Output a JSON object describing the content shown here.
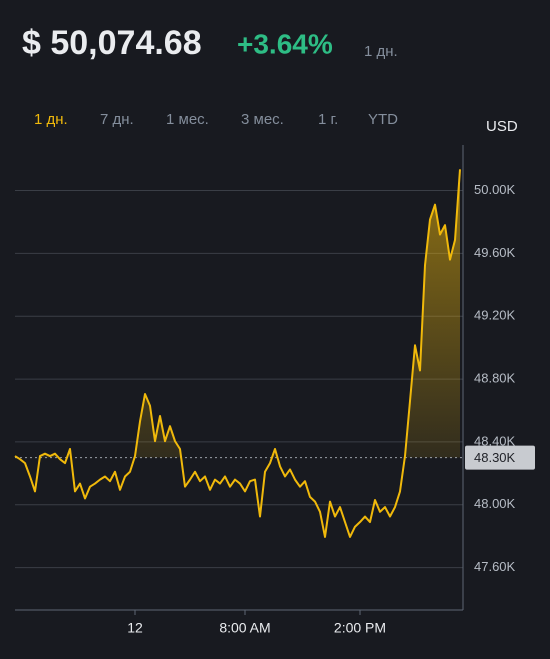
{
  "header": {
    "price": "$ 50,074.68",
    "change": "+3.64%",
    "period": "1 дн."
  },
  "tabs": [
    "1 дн.",
    "7 дн.",
    "1 мес.",
    "3 мес.",
    "1 г.",
    "YTD"
  ],
  "active_tab": 0,
  "chart_data": {
    "type": "line",
    "y_axis_label": "USD",
    "color": "#f0b90b",
    "grid": true,
    "categories": [
      null,
      null,
      null,
      null,
      null,
      null,
      null,
      null,
      null,
      null,
      null,
      null,
      null,
      null,
      null,
      null,
      null,
      null,
      null,
      null,
      null,
      null,
      null,
      null,
      "12",
      null,
      null,
      null,
      null,
      null,
      null,
      null,
      null,
      null,
      null,
      null,
      null,
      null,
      null,
      null,
      null,
      null,
      null,
      null,
      null,
      null,
      "8:00 AM",
      null,
      null,
      null,
      null,
      null,
      null,
      null,
      null,
      null,
      null,
      null,
      null,
      null,
      null,
      null,
      null,
      null,
      null,
      null,
      null,
      null,
      null,
      "2:00 PM",
      null,
      null,
      null,
      null,
      null,
      null,
      null,
      null,
      null,
      null,
      null,
      null,
      null,
      null,
      null,
      null,
      null,
      null,
      null,
      null
    ],
    "values": [
      48310,
      48290,
      48265,
      48180,
      48085,
      48310,
      48325,
      48310,
      48325,
      48290,
      48265,
      48355,
      48085,
      48135,
      48040,
      48115,
      48135,
      48160,
      48180,
      48150,
      48210,
      48095,
      48180,
      48210,
      48310,
      48530,
      48705,
      48630,
      48405,
      48565,
      48405,
      48500,
      48405,
      48355,
      48115,
      48160,
      48210,
      48150,
      48180,
      48095,
      48160,
      48135,
      48180,
      48115,
      48160,
      48135,
      48085,
      48150,
      48160,
      47925,
      48210,
      48265,
      48355,
      48245,
      48180,
      48225,
      48160,
      48115,
      48150,
      48050,
      48020,
      47955,
      47795,
      48020,
      47925,
      47985,
      47890,
      47795,
      47860,
      47890,
      47925,
      47890,
      48030,
      47955,
      47985,
      47925,
      47985,
      48085,
      48310,
      48660,
      49015,
      48855,
      49525,
      49815,
      49910,
      49720,
      49780,
      49560,
      49685,
      50135
    ],
    "ylim": [
      47330,
      50290
    ],
    "yticks": [
      {
        "value": 47600,
        "label": "47.60K"
      },
      {
        "value": 48000,
        "label": "48.00K"
      },
      {
        "value": 48400,
        "label": "48.40K"
      },
      {
        "value": 48800,
        "label": "48.80K"
      },
      {
        "value": 49200,
        "label": "49.20K"
      },
      {
        "value": 49600,
        "label": "49.60K"
      },
      {
        "value": 50000,
        "label": "50.00K"
      }
    ],
    "last_price": {
      "value": 48300,
      "label": "48.30K"
    }
  }
}
